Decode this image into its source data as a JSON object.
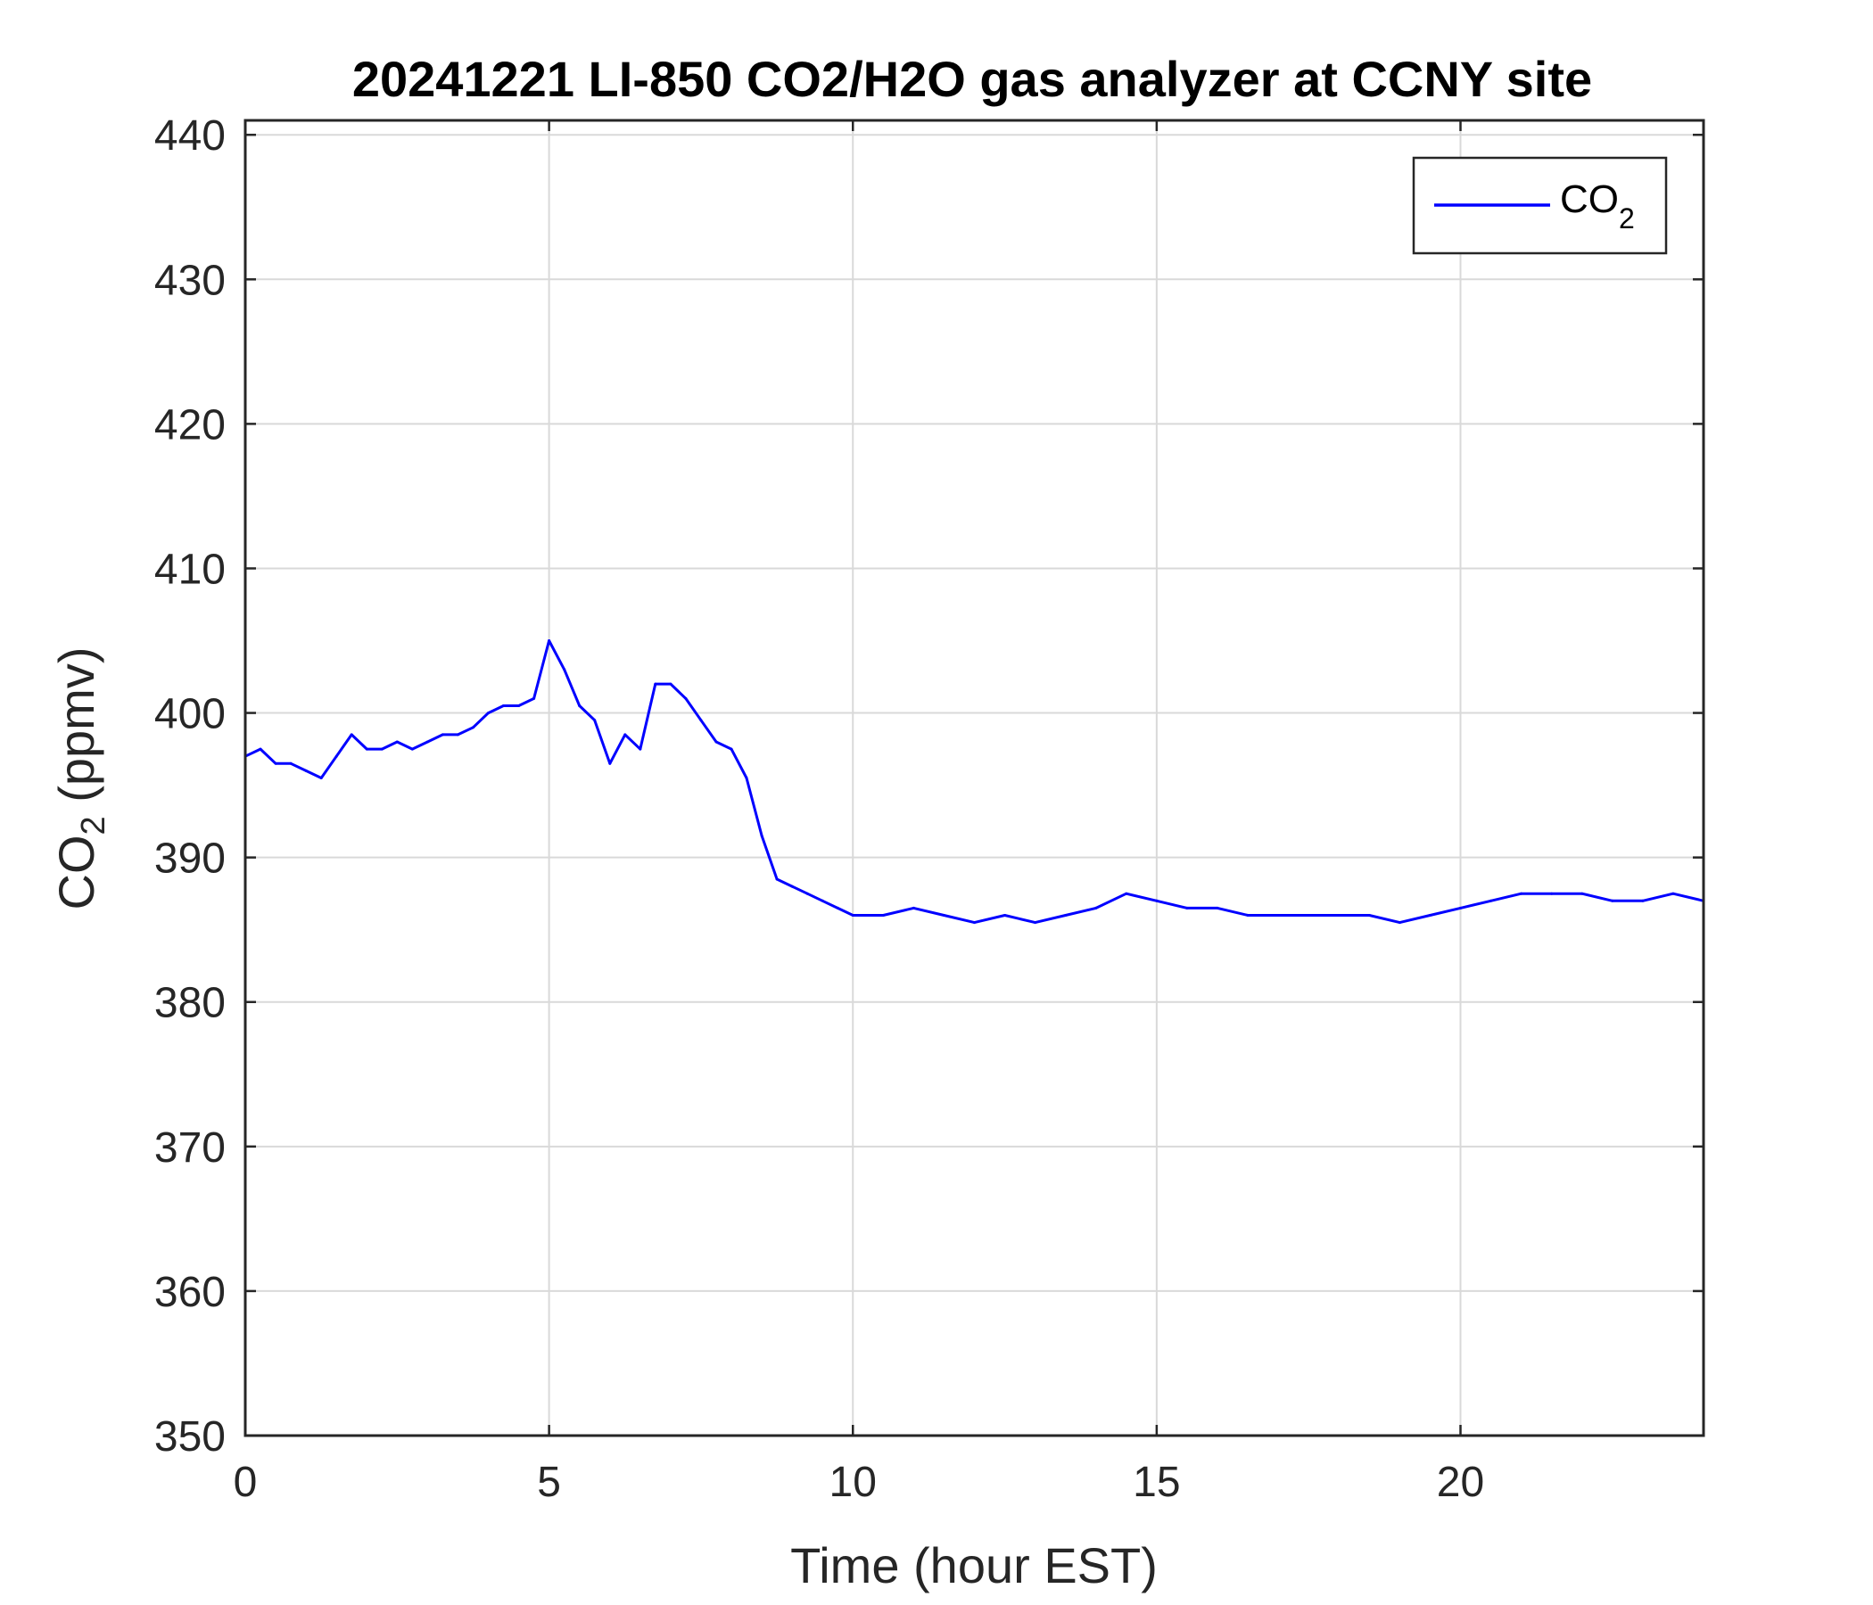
{
  "chart_data": {
    "type": "line",
    "title": "20241221 LI-850 CO2/H2O gas analyzer at CCNY site",
    "xlabel": "Time (hour EST)",
    "ylabel": {
      "main": "CO",
      "sub": "2",
      "unit": " (ppmv)"
    },
    "xlim": [
      0,
      24
    ],
    "ylim": [
      350,
      441
    ],
    "xticks": [
      0,
      5,
      10,
      15,
      20
    ],
    "yticks": [
      350,
      360,
      370,
      380,
      390,
      400,
      410,
      420,
      430,
      440
    ],
    "grid": true,
    "legend": {
      "position": "top-right",
      "label_main": "CO",
      "label_sub": "2"
    },
    "series": [
      {
        "name": "CO2",
        "color": "#0000ff",
        "x": [
          0,
          0.25,
          0.5,
          0.75,
          1,
          1.25,
          1.5,
          1.75,
          2,
          2.25,
          2.5,
          2.75,
          3,
          3.25,
          3.5,
          3.75,
          4,
          4.25,
          4.5,
          4.75,
          5,
          5.25,
          5.5,
          5.75,
          6,
          6.25,
          6.5,
          6.75,
          7,
          7.25,
          7.5,
          7.75,
          8,
          8.25,
          8.5,
          8.75,
          9,
          9.25,
          9.5,
          9.75,
          10,
          10.5,
          11,
          11.5,
          12,
          12.5,
          13,
          13.5,
          14,
          14.5,
          15,
          15.5,
          16,
          16.5,
          17,
          17.5,
          18,
          18.5,
          19,
          19.5,
          20,
          20.5,
          21,
          21.5,
          22,
          22.5,
          23,
          23.5,
          24
        ],
        "values": [
          397,
          397.5,
          396.5,
          396.5,
          396,
          395.5,
          397,
          398.5,
          397.5,
          397.5,
          398,
          397.5,
          398,
          398.5,
          398.5,
          399,
          400,
          400.5,
          400.5,
          401,
          405,
          403,
          400.5,
          399.5,
          396.5,
          398.5,
          397.5,
          402,
          402,
          401,
          399.5,
          398,
          397.5,
          395.5,
          391.5,
          388.5,
          388,
          387.5,
          387,
          386.5,
          386,
          386,
          386.5,
          386,
          385.5,
          386,
          385.5,
          386,
          386.5,
          387.5,
          387,
          386.5,
          386.5,
          386,
          386,
          386,
          386,
          386,
          385.5,
          386,
          386.5,
          387,
          387.5,
          387.5,
          387.5,
          387,
          387,
          387.5,
          387
        ]
      }
    ]
  }
}
